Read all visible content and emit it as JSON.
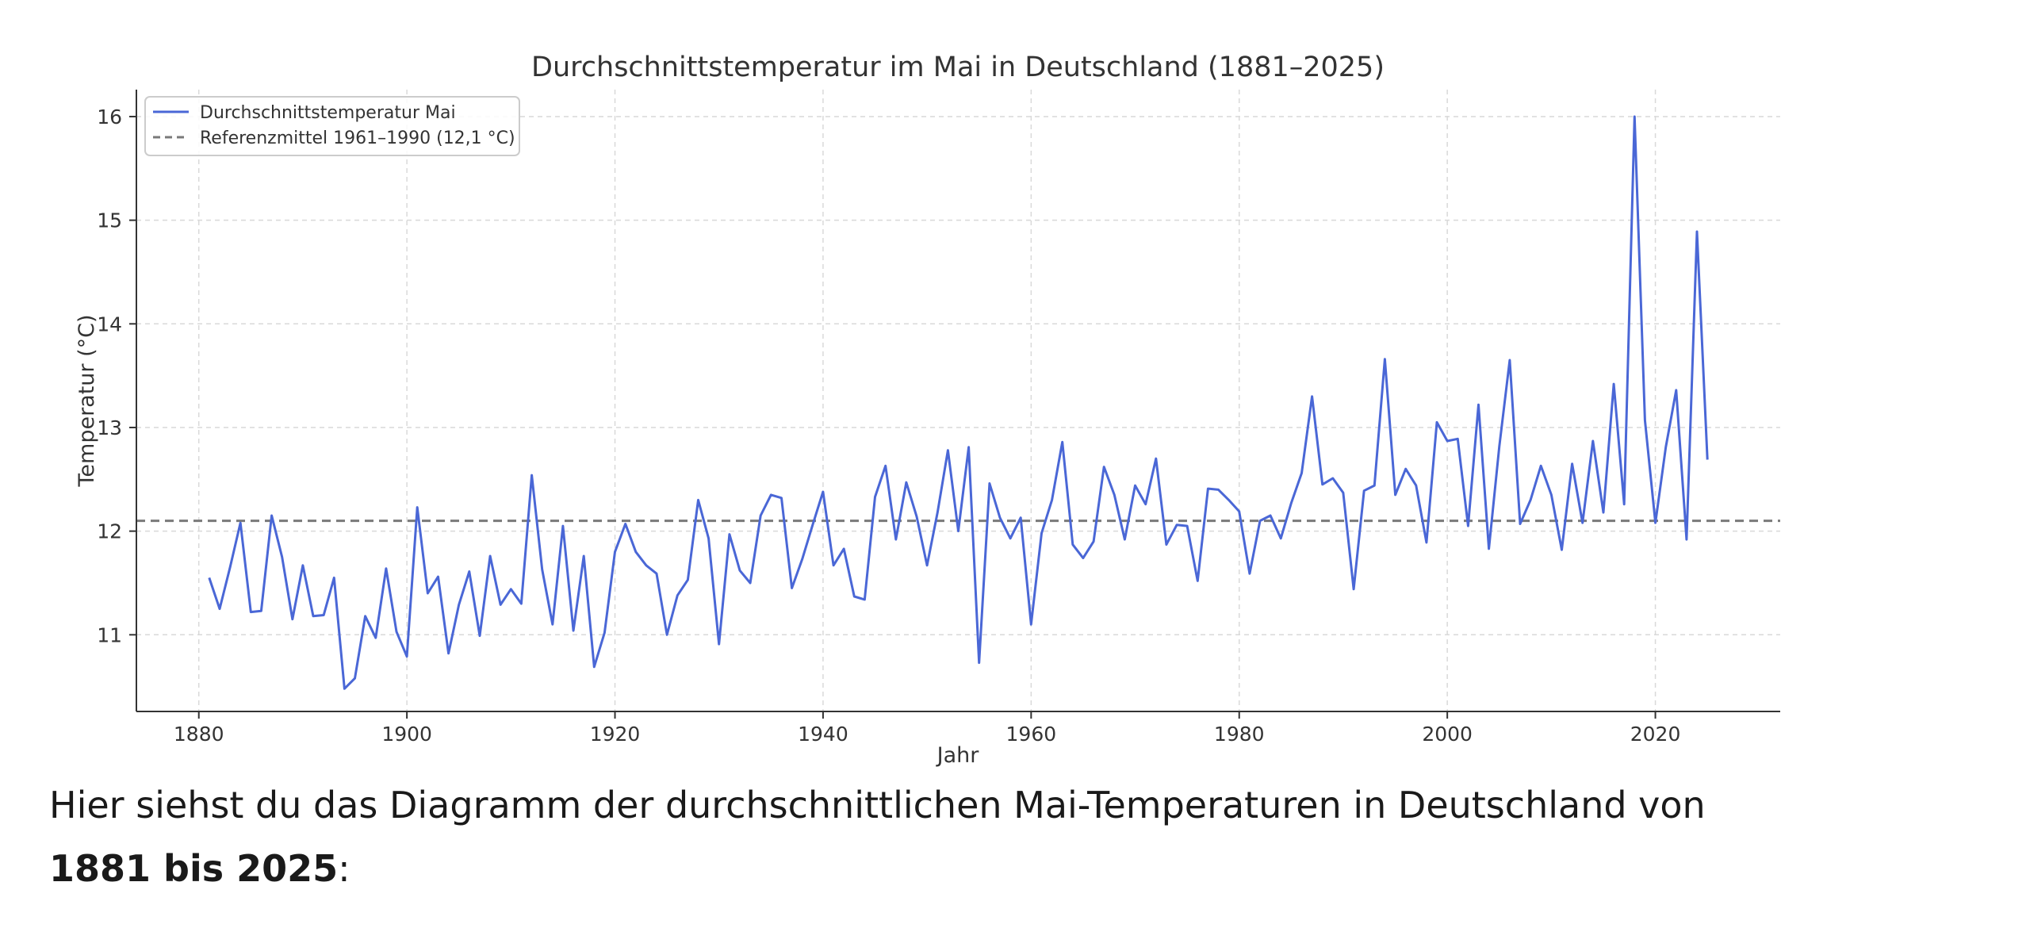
{
  "chart_data": {
    "type": "line",
    "title": "Durchschnittstemperatur im Mai in Deutschland (1881–2025)",
    "xlabel": "Jahr",
    "ylabel": "Temperatur (°C)",
    "xlim": [
      1874,
      2032
    ],
    "ylim": [
      10.26,
      16.26
    ],
    "xticks": [
      1880,
      1900,
      1920,
      1940,
      1960,
      1980,
      2000,
      2020
    ],
    "yticks": [
      11,
      12,
      13,
      14,
      15,
      16
    ],
    "grid": true,
    "legend_position": "top-left",
    "series": [
      {
        "name": "Durchschnittstemperatur Mai",
        "color": "#4a67d6",
        "style": "solid",
        "x": [
          1881,
          1882,
          1883,
          1884,
          1885,
          1886,
          1887,
          1888,
          1889,
          1890,
          1891,
          1892,
          1893,
          1894,
          1895,
          1896,
          1897,
          1898,
          1899,
          1900,
          1901,
          1902,
          1903,
          1904,
          1905,
          1906,
          1907,
          1908,
          1909,
          1910,
          1911,
          1912,
          1913,
          1914,
          1915,
          1916,
          1917,
          1918,
          1919,
          1920,
          1921,
          1922,
          1923,
          1924,
          1925,
          1926,
          1927,
          1928,
          1929,
          1930,
          1931,
          1932,
          1933,
          1934,
          1935,
          1936,
          1937,
          1938,
          1939,
          1940,
          1941,
          1942,
          1943,
          1944,
          1945,
          1946,
          1947,
          1948,
          1949,
          1950,
          1951,
          1952,
          1953,
          1954,
          1955,
          1956,
          1957,
          1958,
          1959,
          1960,
          1961,
          1962,
          1963,
          1964,
          1965,
          1966,
          1967,
          1968,
          1969,
          1970,
          1971,
          1972,
          1973,
          1974,
          1975,
          1976,
          1977,
          1978,
          1979,
          1980,
          1981,
          1982,
          1983,
          1984,
          1985,
          1986,
          1987,
          1988,
          1989,
          1990,
          1991,
          1992,
          1993,
          1994,
          1995,
          1996,
          1997,
          1998,
          1999,
          2000,
          2001,
          2002,
          2003,
          2004,
          2005,
          2006,
          2007,
          2008,
          2009,
          2010,
          2011,
          2012,
          2013,
          2014,
          2015,
          2016,
          2017,
          2018,
          2019,
          2020,
          2021,
          2022,
          2023,
          2024,
          2025
        ],
        "values": [
          11.55,
          11.25,
          11.65,
          12.08,
          11.22,
          11.23,
          12.15,
          11.75,
          11.15,
          11.67,
          11.18,
          11.19,
          11.55,
          10.48,
          10.58,
          11.18,
          10.97,
          11.64,
          11.03,
          10.79,
          12.23,
          11.4,
          11.56,
          10.82,
          11.29,
          11.61,
          10.99,
          11.76,
          11.29,
          11.44,
          11.3,
          12.54,
          11.63,
          11.1,
          12.05,
          11.04,
          11.76,
          10.69,
          11.02,
          11.8,
          12.07,
          11.8,
          11.67,
          11.59,
          11.0,
          11.38,
          11.53,
          12.3,
          11.93,
          10.91,
          11.97,
          11.62,
          11.5,
          12.15,
          12.35,
          12.32,
          11.45,
          11.73,
          12.06,
          12.38,
          11.67,
          11.83,
          11.37,
          11.34,
          12.33,
          12.63,
          11.92,
          12.47,
          12.14,
          11.67,
          12.18,
          12.78,
          12.0,
          12.81,
          10.73,
          12.46,
          12.13,
          11.93,
          12.13,
          11.1,
          11.98,
          12.3,
          12.86,
          11.87,
          11.74,
          11.9,
          12.62,
          12.35,
          11.92,
          12.44,
          12.26,
          12.7,
          11.87,
          12.06,
          12.05,
          11.52,
          12.41,
          12.4,
          12.3,
          12.19,
          11.59,
          12.1,
          12.15,
          11.93,
          12.27,
          12.56,
          13.3,
          12.45,
          12.51,
          12.37,
          11.44,
          12.39,
          12.44,
          13.66,
          12.35,
          12.6,
          12.44,
          11.89,
          13.05,
          12.87,
          12.89,
          12.05,
          13.22,
          11.83,
          12.82,
          13.65,
          12.07,
          12.3,
          12.63,
          12.35,
          11.82,
          12.65,
          12.08,
          12.87,
          12.18,
          13.42,
          12.26,
          16.0,
          13.07,
          12.08,
          12.81,
          13.36,
          11.92,
          14.89,
          12.69
        ]
      },
      {
        "name": "Referenzmittel 1961–1990 (12,1 °C)",
        "color": "#7a7a7a",
        "style": "dashed",
        "value": 12.1
      }
    ]
  },
  "caption": {
    "text_before": "Hier siehst du das Diagramm der durchschnittlichen Mai-Temperaturen in Deutschland von ",
    "bold": "1881 bis 2025",
    "text_after": ":"
  }
}
